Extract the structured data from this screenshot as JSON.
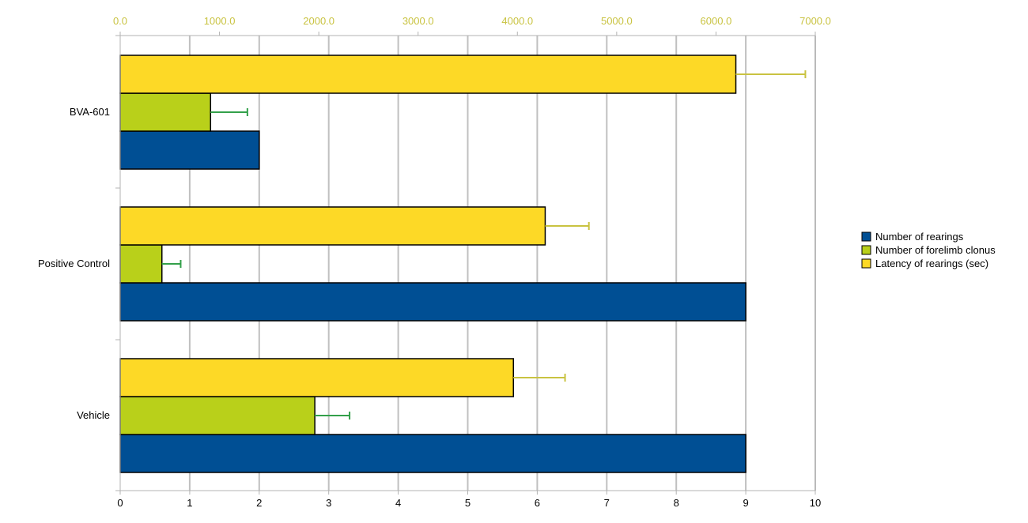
{
  "chart_data": {
    "type": "bar",
    "orientation": "horizontal",
    "title": "",
    "categories": [
      "BVA-601",
      "Positive Control",
      "Vehicle"
    ],
    "series": [
      {
        "name": "Number of rearings",
        "axis": "bottom",
        "color": "#004f94",
        "values": [
          2.0,
          9.0,
          9.0
        ],
        "errors": null
      },
      {
        "name": "Number of forelimb clonus",
        "axis": "bottom",
        "color": "#b9d01a",
        "values": [
          1.3,
          0.6,
          2.8
        ],
        "errors": [
          0.53,
          0.27,
          0.5
        ]
      },
      {
        "name": "Latency of rearings (sec)",
        "axis": "top",
        "color": "#fdd926",
        "values": [
          6200,
          4280,
          3960
        ],
        "errors": [
          700,
          440,
          520
        ]
      }
    ],
    "bottom_axis": {
      "min": 0,
      "max": 10,
      "ticks": [
        0,
        1,
        2,
        3,
        4,
        5,
        6,
        7,
        8,
        9,
        10
      ],
      "tick_labels": [
        "0",
        "1",
        "2",
        "3",
        "4",
        "5",
        "6",
        "7",
        "8",
        "9",
        "10"
      ],
      "label_color": "#000000"
    },
    "top_axis": {
      "min": 0,
      "max": 7000,
      "ticks": [
        0,
        1000,
        2000,
        3000,
        4000,
        5000,
        6000,
        7000
      ],
      "tick_labels": [
        "0.0",
        "1000.0",
        "2000.0",
        "3000.0",
        "4000.0",
        "5000.0",
        "6000.0",
        "7000.0"
      ],
      "label_color": "#c9c341"
    },
    "grid": true,
    "grid_color": "#c0c0c0",
    "error_bar_colors": {
      "Number of forelimb clonus": "#33a04a",
      "Latency of rearings (sec)": "#c9c341"
    },
    "legend": {
      "position": "right",
      "order": [
        "Number of rearings",
        "Number of forelimb clonus",
        "Latency of rearings (sec)"
      ]
    }
  }
}
